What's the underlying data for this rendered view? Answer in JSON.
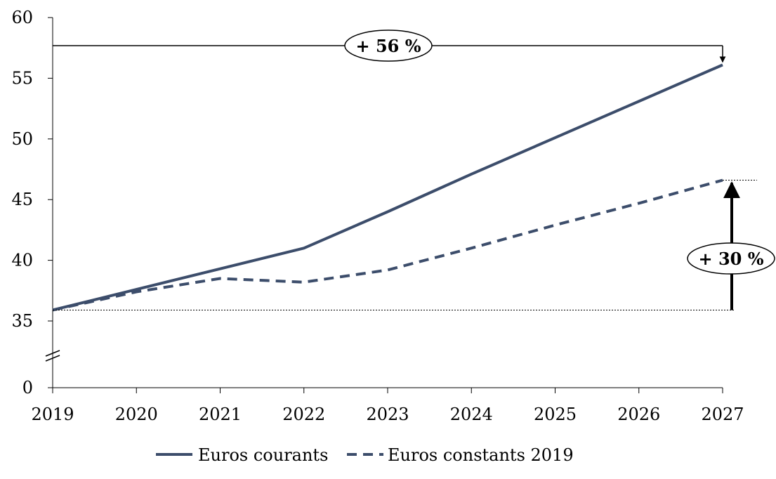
{
  "chart_data": {
    "type": "line",
    "x": [
      2019,
      2020,
      2021,
      2022,
      2023,
      2024,
      2025,
      2026,
      2027
    ],
    "x_tick_labels": [
      "2019",
      "2020",
      "2021",
      "2022",
      "2023",
      "2024",
      "2025",
      "2026",
      "2027"
    ],
    "y_tick_values": [
      0,
      35,
      40,
      45,
      50,
      55,
      60
    ],
    "y_tick_labels": [
      "0",
      "35",
      "40",
      "45",
      "50",
      "55",
      "60"
    ],
    "ylim": [
      0,
      60
    ],
    "y_axis_break": true,
    "y_axis_break_range": [
      0,
      35
    ],
    "grid": false,
    "legend_position": "bottom-center",
    "series": [
      {
        "name": "Euros courants",
        "style": "solid",
        "color": "#3c4d6b",
        "values": [
          35.9,
          37.6,
          39.3,
          41.0,
          44.0,
          47.1,
          50.1,
          53.1,
          56.1
        ]
      },
      {
        "name": "Euros constants 2019",
        "style": "dashed",
        "color": "#3c4d6b",
        "values": [
          35.9,
          37.4,
          38.5,
          38.2,
          39.2,
          41.0,
          42.9,
          44.7,
          46.6
        ]
      }
    ],
    "annotations": [
      {
        "label": "+ 56 %",
        "series": "Euros courants",
        "from_value": 35.9,
        "to_value": 56.1
      },
      {
        "label": "+ 30 %",
        "series": "Euros constants 2019",
        "from_value": 35.9,
        "to_value": 46.6
      }
    ]
  }
}
